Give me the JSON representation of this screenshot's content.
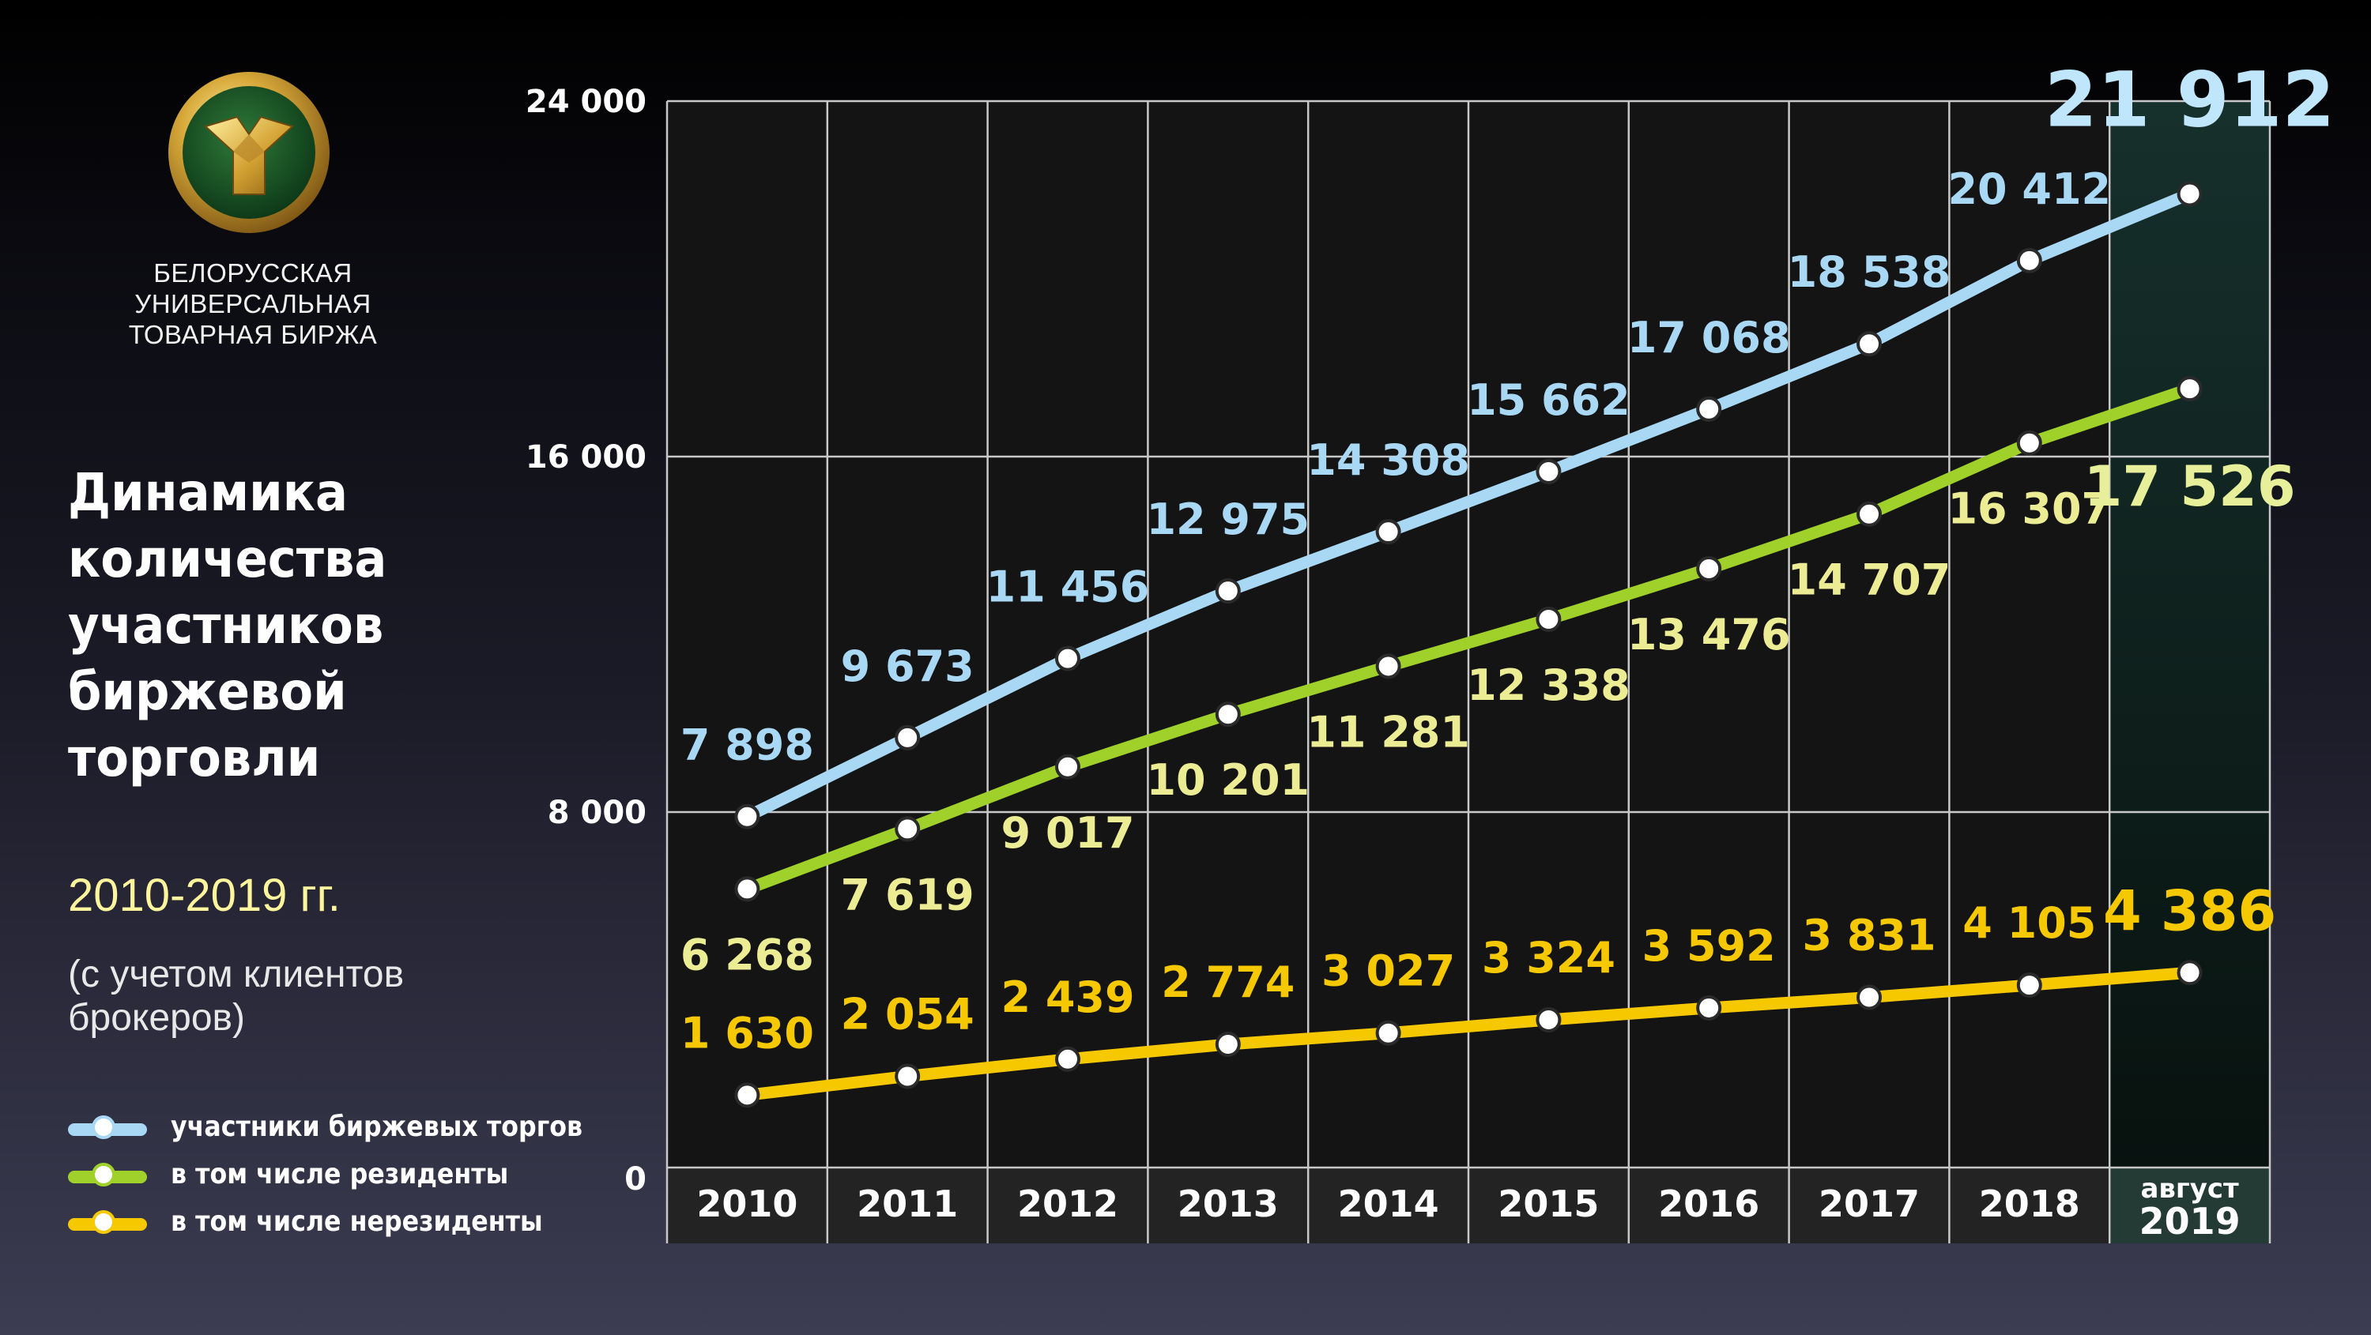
{
  "organization": {
    "lines": [
      "БЕЛОРУССКАЯ",
      "УНИВЕРСАЛЬНАЯ",
      "ТОВАРНАЯ БИРЖА"
    ],
    "logo_icon": "bucb-emblem-icon"
  },
  "title_lines": [
    "Динамика",
    "количества",
    "участников",
    "биржевой",
    "торговли"
  ],
  "period": "2010-2019 гг.",
  "note_lines": [
    "(с учетом клиентов",
    "брокеров)"
  ],
  "colors": {
    "total": "#a8d8f4",
    "residents": "#9fd12a",
    "nonresidents": "#f5c800",
    "residents_label": "#ecec95",
    "highlight_total": "#bfe6fb",
    "highlight_residents": "#e7ef9a"
  },
  "chart_data": {
    "type": "line",
    "title": "Динамика количества участников биржевой торговли",
    "categories": [
      "2010",
      "2011",
      "2012",
      "2013",
      "2014",
      "2015",
      "2016",
      "2017",
      "2018",
      "август 2019"
    ],
    "category_labels": [
      [
        "2010"
      ],
      [
        "2011"
      ],
      [
        "2012"
      ],
      [
        "2013"
      ],
      [
        "2014"
      ],
      [
        "2015"
      ],
      [
        "2016"
      ],
      [
        "2017"
      ],
      [
        "2018"
      ],
      [
        "август",
        "2019"
      ]
    ],
    "ylim": [
      0,
      24000
    ],
    "yticks": [
      0,
      8000,
      16000,
      24000
    ],
    "ytick_labels": [
      "0",
      "8 000",
      "16 000",
      "24 000"
    ],
    "grid": true,
    "legend_position": "bottom-left",
    "series": [
      {
        "key": "total",
        "name": "участники биржевых торгов",
        "values": [
          7898,
          9673,
          11456,
          12975,
          14308,
          15662,
          17068,
          18538,
          20412,
          21912
        ],
        "labels": [
          "7 898",
          "9 673",
          "11 456",
          "12 975",
          "14 308",
          "15 662",
          "17 068",
          "18 538",
          "20 412",
          "21 912"
        ]
      },
      {
        "key": "residents",
        "name": "в том числе резиденты",
        "values": [
          6268,
          7619,
          9017,
          10201,
          11281,
          12338,
          13476,
          14707,
          16307,
          17526
        ],
        "labels": [
          "6 268",
          "7 619",
          "9 017",
          "10 201",
          "11 281",
          "12 338",
          "13 476",
          "14 707",
          "16 307",
          "17 526"
        ]
      },
      {
        "key": "nonresidents",
        "name": "в том числе нерезиденты",
        "values": [
          1630,
          2054,
          2439,
          2774,
          3027,
          3324,
          3592,
          3831,
          4105,
          4386
        ],
        "labels": [
          "1 630",
          "2 054",
          "2 439",
          "2 774",
          "3 027",
          "3 324",
          "3 592",
          "3 831",
          "4 105",
          "4 386"
        ]
      }
    ]
  }
}
